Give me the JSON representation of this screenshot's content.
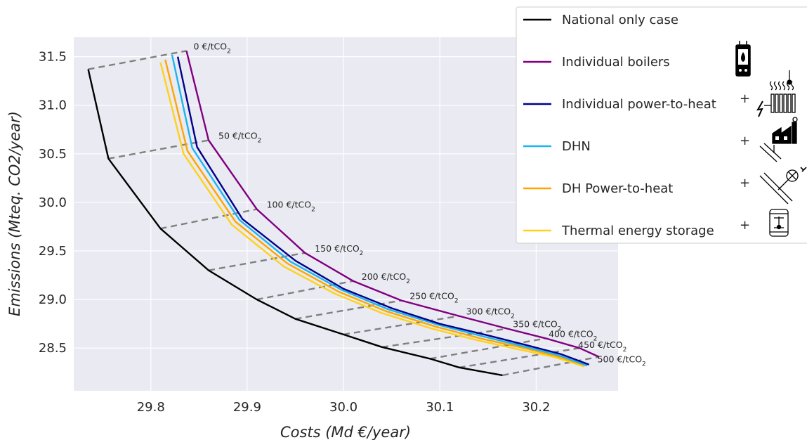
{
  "chart_data": {
    "type": "line",
    "xlabel": "Costs (Md €/year)",
    "ylabel": "Emissions (Mteq. CO2/year)",
    "xlim": [
      29.72,
      30.285
    ],
    "ylim": [
      28.06,
      31.7
    ],
    "xticks": [
      "29.8",
      "29.9",
      "30.0",
      "30.1",
      "30.2"
    ],
    "yticks": [
      "28.5",
      "29.0",
      "29.5",
      "30.0",
      "30.5",
      "31.0",
      "31.5"
    ],
    "grid": true,
    "legend_position": "top-right",
    "carbon_prices": [
      "0 €/tCO2",
      "50 €/tCO2",
      "100 €/tCO2",
      "150 €/tCO2",
      "200 €/tCO2",
      "250 €/tCO2",
      "300 €/tCO2",
      "350 €/tCO2",
      "400 €/tCO2",
      "450 €/tCO2",
      "500 €/tCO2"
    ],
    "series": [
      {
        "name": "National only case",
        "color": "#000000",
        "icon": "",
        "x": [
          29.735,
          29.756,
          29.81,
          29.86,
          29.91,
          29.95,
          30.0,
          30.04,
          30.09,
          30.12,
          30.165
        ],
        "y": [
          31.37,
          30.45,
          29.73,
          29.3,
          29.0,
          28.8,
          28.64,
          28.51,
          28.39,
          28.3,
          28.22
        ]
      },
      {
        "name": "Individual boilers",
        "color": "#800080",
        "icon": "gas-boiler-icon",
        "x": [
          29.837,
          29.86,
          29.91,
          29.96,
          30.01,
          30.06,
          30.12,
          30.17,
          30.21,
          30.245,
          30.265
        ],
        "y": [
          31.56,
          30.64,
          29.93,
          29.48,
          29.19,
          28.99,
          28.83,
          28.7,
          28.6,
          28.5,
          28.41
        ]
      },
      {
        "name": "Individual power-to-heat",
        "color": "#00008b",
        "icon": "radiator-icon",
        "x": [
          29.828,
          29.848,
          29.895,
          29.95,
          30.0,
          30.05,
          30.1,
          30.15,
          30.19,
          30.225,
          30.255
        ],
        "y": [
          31.5,
          30.57,
          29.83,
          29.4,
          29.11,
          28.91,
          28.75,
          28.63,
          28.53,
          28.44,
          28.33
        ]
      },
      {
        "name": "DHN",
        "color": "#1cb4ef",
        "icon": "chp-plant-icon",
        "x": [
          29.822,
          29.843,
          29.892,
          29.945,
          29.998,
          30.046,
          30.098,
          30.145,
          30.186,
          30.222,
          30.253
        ],
        "y": [
          31.52,
          30.56,
          29.82,
          29.39,
          29.1,
          28.9,
          28.74,
          28.62,
          28.52,
          28.43,
          28.32
        ]
      },
      {
        "name": "DH Power-to-heat",
        "color": "#ffa500",
        "icon": "heat-pump-icon",
        "x": [
          29.815,
          29.838,
          29.888,
          29.942,
          29.995,
          30.044,
          30.096,
          30.142,
          30.183,
          30.22,
          30.252
        ],
        "y": [
          31.47,
          30.53,
          29.8,
          29.37,
          29.08,
          28.88,
          28.72,
          28.6,
          28.51,
          28.42,
          28.32
        ]
      },
      {
        "name": "Thermal energy storage",
        "color": "#ffd11a",
        "icon": "storage-tank-icon",
        "x": [
          29.81,
          29.834,
          29.884,
          29.938,
          29.991,
          30.04,
          30.092,
          30.139,
          30.18,
          30.218,
          30.25
        ],
        "y": [
          31.44,
          30.5,
          29.77,
          29.34,
          29.06,
          28.86,
          28.7,
          28.58,
          28.49,
          28.41,
          28.31
        ]
      }
    ]
  },
  "legend": {
    "items": [
      {
        "label": "National only case",
        "plus": ""
      },
      {
        "label": "Individual boilers",
        "plus": ""
      },
      {
        "label": "Individual power-to-heat",
        "plus": "+"
      },
      {
        "label": "DHN",
        "plus": "+"
      },
      {
        "label": "DH Power-to-heat",
        "plus": "+"
      },
      {
        "label": "Thermal energy storage",
        "plus": "+"
      }
    ]
  },
  "colors": {
    "plot_background": "#eaeaf2",
    "grid": "#ffffff",
    "dashed_connector": "#808080",
    "legend_border": "#cccccc"
  }
}
